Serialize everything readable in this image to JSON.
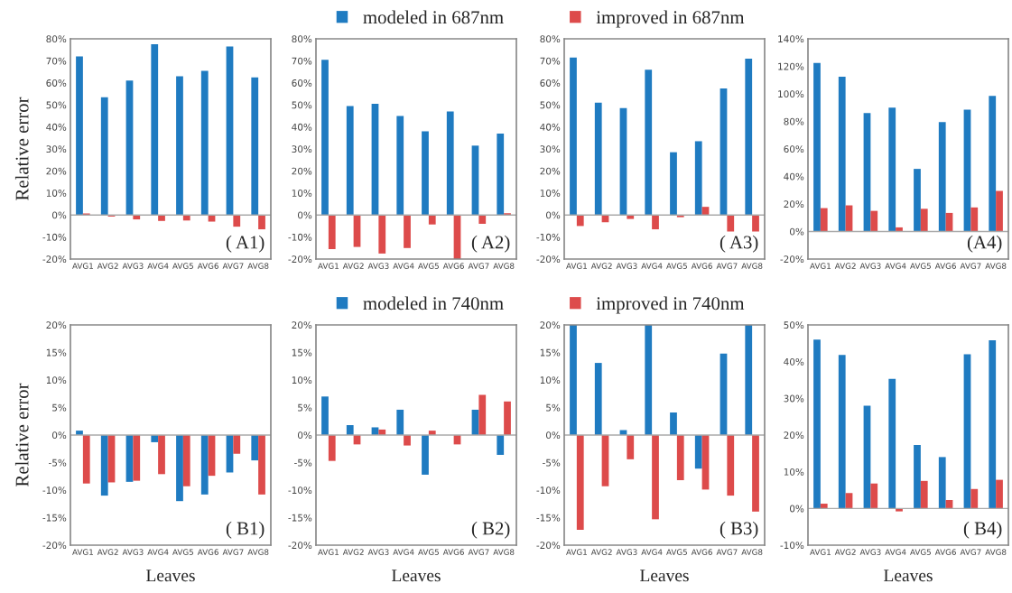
{
  "chart_data": [
    {
      "type": "bar",
      "ylabel": "Relative error",
      "annotations": [
        "( A1)"
      ],
      "categories": [
        "AVG1",
        "AVG2",
        "AVG3",
        "AVG4",
        "AVG5",
        "AVG6",
        "AVG7",
        "AVG8"
      ],
      "ylim": [
        -20,
        80
      ],
      "yticks": [
        {
          "value": -20,
          "label": "-20%"
        },
        {
          "value": -10,
          "label": "-10%"
        },
        {
          "value": 0,
          "label": "0%"
        },
        {
          "value": 10,
          "label": "10%"
        },
        {
          "value": 20,
          "label": "20%"
        },
        {
          "value": 30,
          "label": "30%"
        },
        {
          "value": 40,
          "label": "40%"
        },
        {
          "value": 50,
          "label": "50%"
        },
        {
          "value": 60,
          "label": "60%"
        },
        {
          "value": 70,
          "label": "70%"
        },
        {
          "value": 80,
          "label": "80%"
        }
      ],
      "series": [
        {
          "color": "#1f7bc1",
          "values": [
            72,
            53.5,
            61,
            77.5,
            63,
            65.5,
            76.5,
            62.5
          ]
        },
        {
          "color": "#dd4b4b",
          "values": [
            0.7,
            -0.7,
            -2,
            -2.7,
            -2.5,
            -3,
            -5.3,
            -6.5
          ]
        }
      ]
    },
    {
      "type": "bar",
      "annotations": [
        "( A2)"
      ],
      "legend": "top",
      "categories": [
        "AVG1",
        "AVG2",
        "AVG3",
        "AVG4",
        "AVG5",
        "AVG6",
        "AVG7",
        "AVG8"
      ],
      "ylim": [
        -20,
        80
      ],
      "yticks": [
        {
          "value": -20,
          "label": "-20%"
        },
        {
          "value": -10,
          "label": "-10%"
        },
        {
          "value": 0,
          "label": "0%"
        },
        {
          "value": 10,
          "label": "10%"
        },
        {
          "value": 20,
          "label": "20%"
        },
        {
          "value": 30,
          "label": "30%"
        },
        {
          "value": 40,
          "label": "40%"
        },
        {
          "value": 50,
          "label": "50%"
        },
        {
          "value": 60,
          "label": "60%"
        },
        {
          "value": 70,
          "label": "70%"
        },
        {
          "value": 80,
          "label": "80%"
        }
      ],
      "series": [
        {
          "name": "modeled in 687nm",
          "color": "#1f7bc1",
          "values": [
            70.5,
            49.5,
            50.5,
            45,
            38,
            47,
            31.5,
            37
          ]
        },
        {
          "name": "improved in 687nm",
          "color": "#dd4b4b",
          "values": [
            -15.5,
            -14.5,
            -17.5,
            -15,
            -4.3,
            -20,
            -4,
            0.8
          ]
        }
      ]
    },
    {
      "type": "bar",
      "annotations": [
        "( A3)"
      ],
      "categories": [
        "AVG1",
        "AVG2",
        "AVG3",
        "AVG4",
        "AVG5",
        "AVG6",
        "AVG7",
        "AVG8"
      ],
      "ylim": [
        -20,
        80
      ],
      "yticks": [
        {
          "value": -20,
          "label": "-20%"
        },
        {
          "value": -10,
          "label": "-10%"
        },
        {
          "value": 0,
          "label": "0%"
        },
        {
          "value": 10,
          "label": "10%"
        },
        {
          "value": 20,
          "label": "20%"
        },
        {
          "value": 30,
          "label": "30%"
        },
        {
          "value": 40,
          "label": "40%"
        },
        {
          "value": 50,
          "label": "50%"
        },
        {
          "value": 60,
          "label": "60%"
        },
        {
          "value": 70,
          "label": "70%"
        },
        {
          "value": 80,
          "label": "80%"
        }
      ],
      "series": [
        {
          "color": "#1f7bc1",
          "values": [
            71.5,
            51,
            48.5,
            66,
            28.5,
            33.5,
            57.5,
            71
          ]
        },
        {
          "color": "#dd4b4b",
          "values": [
            -5,
            -3.3,
            -1.8,
            -6.5,
            -1,
            3.7,
            -7.5,
            -7.5
          ]
        }
      ]
    },
    {
      "type": "bar",
      "annotations": [
        "(A4)"
      ],
      "categories": [
        "AVG1",
        "AVG2",
        "AVG3",
        "AVG4",
        "AVG5",
        "AVG6",
        "AVG7",
        "AVG8"
      ],
      "ylim": [
        -20,
        140
      ],
      "yticks": [
        {
          "value": -20,
          "label": "-20%"
        },
        {
          "value": 0,
          "label": "0%"
        },
        {
          "value": 20,
          "label": "20%"
        },
        {
          "value": 40,
          "label": "40%"
        },
        {
          "value": 60,
          "label": "60%"
        },
        {
          "value": 80,
          "label": "80%"
        },
        {
          "value": 100,
          "label": "100%"
        },
        {
          "value": 120,
          "label": "120%"
        },
        {
          "value": 140,
          "label": "140%"
        }
      ],
      "series": [
        {
          "color": "#1f7bc1",
          "values": [
            122.5,
            112.5,
            86,
            90,
            45.5,
            79.5,
            88.5,
            98.5
          ]
        },
        {
          "color": "#dd4b4b",
          "values": [
            17,
            19,
            15,
            3,
            16.5,
            13.5,
            17.5,
            29.5
          ]
        }
      ]
    },
    {
      "type": "bar",
      "xlabel": "Leaves",
      "ylabel": "Relative error",
      "annotations": [
        "( B1)"
      ],
      "categories": [
        "AVG1",
        "AVG2",
        "AVG3",
        "AVG4",
        "AVG5",
        "AVG6",
        "AVG7",
        "AVG8"
      ],
      "ylim": [
        -20,
        20
      ],
      "yticks": [
        {
          "value": -20,
          "label": "-20%"
        },
        {
          "value": -15,
          "label": "-15%"
        },
        {
          "value": -10,
          "label": "-10%"
        },
        {
          "value": -5,
          "label": "-5%"
        },
        {
          "value": 0,
          "label": "0%"
        },
        {
          "value": 5,
          "label": "5%"
        },
        {
          "value": 10,
          "label": "10%"
        },
        {
          "value": 15,
          "label": "15%"
        },
        {
          "value": 20,
          "label": "20%"
        }
      ],
      "series": [
        {
          "color": "#1f7bc1",
          "values": [
            0.8,
            -11,
            -8.5,
            -1.3,
            -12,
            -10.8,
            -6.8,
            -4.6
          ]
        },
        {
          "color": "#dd4b4b",
          "values": [
            -8.8,
            -8.6,
            -8.3,
            -7.1,
            -9.3,
            -7.4,
            -3.4,
            -10.8
          ]
        }
      ]
    },
    {
      "type": "bar",
      "xlabel": "Leaves",
      "annotations": [
        "( B2)"
      ],
      "legend": "top",
      "categories": [
        "AVG1",
        "AVG2",
        "AVG3",
        "AVG4",
        "AVG5",
        "AVG6",
        "AVG7",
        "AVG8"
      ],
      "ylim": [
        -20,
        20
      ],
      "yticks": [
        {
          "value": -20,
          "label": "-20%"
        },
        {
          "value": -15,
          "label": "-15%"
        },
        {
          "value": -10,
          "label": "-10%"
        },
        {
          "value": -5,
          "label": "-5%"
        },
        {
          "value": 0,
          "label": "0%"
        },
        {
          "value": 5,
          "label": "5%"
        },
        {
          "value": 10,
          "label": "10%"
        },
        {
          "value": 15,
          "label": "15%"
        },
        {
          "value": 20,
          "label": "20%"
        }
      ],
      "series": [
        {
          "name": "modeled in 740nm",
          "color": "#1f7bc1",
          "values": [
            7,
            1.8,
            1.4,
            4.6,
            -7.2,
            0,
            4.6,
            -3.6
          ]
        },
        {
          "name": "improved in 740nm",
          "color": "#dd4b4b",
          "values": [
            -4.7,
            -1.7,
            1,
            -1.9,
            0.8,
            -1.7,
            7.3,
            6.1
          ]
        }
      ]
    },
    {
      "type": "bar",
      "xlabel": "Leaves",
      "annotations": [
        "( B3)"
      ],
      "categories": [
        "AVG1",
        "AVG2",
        "AVG3",
        "AVG4",
        "AVG5",
        "AVG6",
        "AVG7",
        "AVG8"
      ],
      "ylim": [
        -20,
        20
      ],
      "yticks": [
        {
          "value": -20,
          "label": "-20%"
        },
        {
          "value": -15,
          "label": "-15%"
        },
        {
          "value": -10,
          "label": "-10%"
        },
        {
          "value": -5,
          "label": "-5%"
        },
        {
          "value": 0,
          "label": "0%"
        },
        {
          "value": 5,
          "label": "5%"
        },
        {
          "value": 10,
          "label": "10%"
        },
        {
          "value": 15,
          "label": "15%"
        },
        {
          "value": 20,
          "label": "20%"
        }
      ],
      "series": [
        {
          "color": "#1f7bc1",
          "values": [
            20,
            13.1,
            0.9,
            20,
            4.1,
            -6.1,
            14.8,
            20
          ]
        },
        {
          "color": "#dd4b4b",
          "values": [
            -17.2,
            -9.3,
            -4.4,
            -15.3,
            -8.2,
            -9.9,
            -11,
            -13.9
          ]
        }
      ]
    },
    {
      "type": "bar",
      "xlabel": "Leaves",
      "annotations": [
        "( B4)"
      ],
      "categories": [
        "AVG1",
        "AVG2",
        "AVG3",
        "AVG4",
        "AVG5",
        "AVG6",
        "AVG7",
        "AVG8"
      ],
      "ylim": [
        -10,
        50
      ],
      "yticks": [
        {
          "value": -10,
          "label": "-10%"
        },
        {
          "value": 0,
          "label": "0%"
        },
        {
          "value": 10,
          "label": "10%"
        },
        {
          "value": 20,
          "label": "20%"
        },
        {
          "value": 30,
          "label": "30%"
        },
        {
          "value": 40,
          "label": "40%"
        },
        {
          "value": 50,
          "label": "50%"
        }
      ],
      "series": [
        {
          "color": "#1f7bc1",
          "values": [
            46,
            41.8,
            28,
            35.3,
            17.3,
            14,
            42,
            45.8
          ]
        },
        {
          "color": "#dd4b4b",
          "values": [
            1.3,
            4.2,
            6.8,
            -0.8,
            7.5,
            2.3,
            5.3,
            7.8
          ]
        }
      ]
    }
  ]
}
